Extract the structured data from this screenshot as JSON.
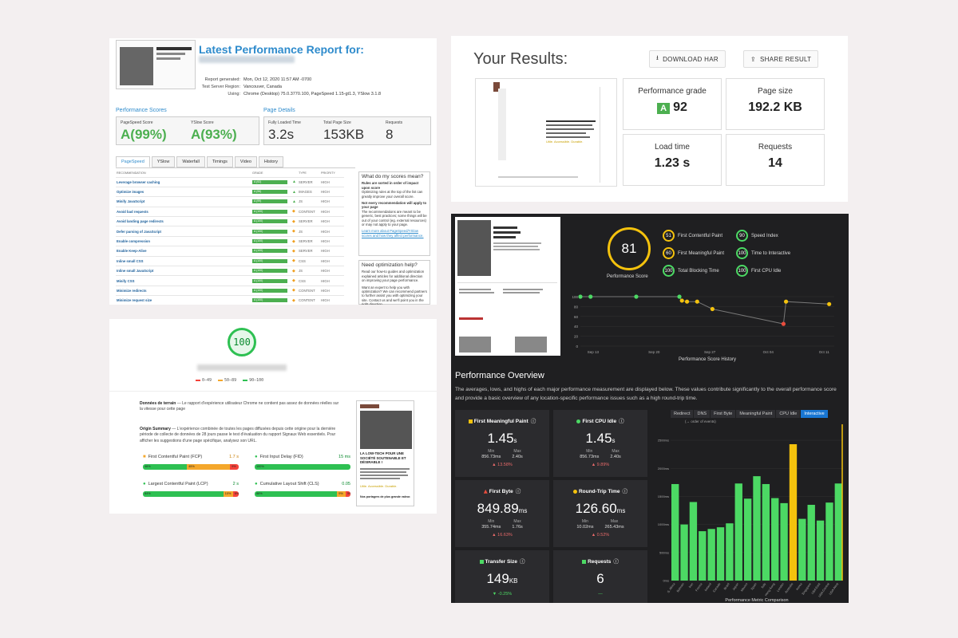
{
  "gtmetrix_report": {
    "title": "Latest Performance Report for:",
    "meta": [
      {
        "k": "Report generated:",
        "v": "Mon, Oct 12, 2020 11:57 AM -0700"
      },
      {
        "k": "Test Server Region:",
        "v": "Vancouver, Canada"
      },
      {
        "k": "Using:",
        "v": "Chrome (Desktop) 75.0.3770.100, PageSpeed 1.15-gt1.3, YSlow 3.1.8"
      }
    ],
    "scores_heading": "Performance Scores",
    "details_heading": "Page Details",
    "pagespeed": {
      "label": "PageSpeed Score",
      "grade": "A",
      "value": "(99%)"
    },
    "yslow": {
      "label": "YSlow Score",
      "grade": "A",
      "value": "(93%)"
    },
    "loaded": {
      "label": "Fully Loaded Time",
      "value": "3.2s"
    },
    "size": {
      "label": "Total Page Size",
      "value": "153KB"
    },
    "requests": {
      "label": "Requests",
      "value": "8"
    },
    "tabs": [
      "PageSpeed",
      "YSlow",
      "Waterfall",
      "Timings",
      "Video",
      "History"
    ],
    "columns": [
      "RECOMMENDATION",
      "GRADE",
      "TYPE",
      "PRIORITY"
    ],
    "rows": [
      {
        "name": "Leverage browser caching",
        "grade": "A (92)",
        "type": "SERVER",
        "priority": "HIGH"
      },
      {
        "name": "Optimize images",
        "grade": "A (96)",
        "type": "IMAGES",
        "priority": "HIGH"
      },
      {
        "name": "Minify JavaScript",
        "grade": "A (99)",
        "type": "JS",
        "priority": "HIGH"
      },
      {
        "name": "Avoid bad requests",
        "grade": "A (100)",
        "type": "CONTENT",
        "priority": "HIGH"
      },
      {
        "name": "Avoid landing page redirects",
        "grade": "A (100)",
        "type": "SERVER",
        "priority": "HIGH"
      },
      {
        "name": "Defer parsing of JavaScript",
        "grade": "A (100)",
        "type": "JS",
        "priority": "HIGH"
      },
      {
        "name": "Enable compression",
        "grade": "A (100)",
        "type": "SERVER",
        "priority": "HIGH"
      },
      {
        "name": "Enable Keep-Alive",
        "grade": "A (100)",
        "type": "SERVER",
        "priority": "HIGH"
      },
      {
        "name": "Inline small CSS",
        "grade": "A (100)",
        "type": "CSS",
        "priority": "HIGH"
      },
      {
        "name": "Inline small JavaScript",
        "grade": "A (100)",
        "type": "JS",
        "priority": "HIGH"
      },
      {
        "name": "Minify CSS",
        "grade": "A (100)",
        "type": "CSS",
        "priority": "HIGH"
      },
      {
        "name": "Minimize redirects",
        "grade": "A (100)",
        "type": "CONTENT",
        "priority": "HIGH"
      },
      {
        "name": "Minimize request size",
        "grade": "A (100)",
        "type": "CONTENT",
        "priority": "HIGH"
      }
    ],
    "side1": {
      "title": "What do my scores mean?",
      "b1": "Rules are sorted in order of impact upon score",
      "t1": "Optimizing rules at the top of the list can greatly improve your overall score.",
      "b2": "Not every recommendation will apply to your page",
      "t2": "The recommendations are meant to be generic, best practices; some things will be out of your control (eg. external resources) or may not apply to your page.",
      "link": "Learn more about PageSpeed/YSlow scores and how they affect performance."
    },
    "side2": {
      "title": "Need optimization help?",
      "t1": "Read our how-to guides and optimization explained articles for additional direction on improving your page performance.",
      "t2": "Want an expert to help you with optimization? We can recommend partners to further assist you with optimizing your site. Contact us and we'll point you in the right direction."
    }
  },
  "results": {
    "title": "Your Results:",
    "download": "DOWNLOAD HAR",
    "share": "SHARE RESULT",
    "cards": [
      {
        "label": "Performance grade",
        "grade": "A",
        "value": "92"
      },
      {
        "label": "Page size",
        "value": "192.2 KB"
      },
      {
        "label": "Load time",
        "value": "1.23 s"
      },
      {
        "label": "Requests",
        "value": "14"
      }
    ],
    "shot_tagline": "Utile. Accessible. Durable."
  },
  "lighthouse": {
    "score": "100",
    "legend": [
      "0–49",
      "50–89",
      "90–100"
    ],
    "field_title": "Données de terrain",
    "field_text": "— Le rapport d'expérience utilisateur Chrome ne contient pas assez de données réelles sur la vitesse pour cette page",
    "origin_title": "Origin Summary",
    "origin_text": "— L'expérience combinée de toutes les pages diffusées depuis cette origine pour la dernière période de collecte de données de 28 jours passe le test d'évaluation du rapport Signaux Web essentiels. Pour afficher les suggestions d'une page spécifique, analysez son URL.",
    "metrics": [
      {
        "name": "First Contentful Paint (FCP)",
        "value": "1.7 s",
        "segs": [
          {
            "pct": "46%",
            "w": 46,
            "c": "#2ec052"
          },
          {
            "pct": "45%",
            "w": 45,
            "c": "#f4a72b"
          },
          {
            "pct": "9%",
            "w": 9,
            "c": "#f4433a"
          }
        ]
      },
      {
        "name": "First Input Delay (FID)",
        "value": "15 ms",
        "segs": [
          {
            "pct": "100%",
            "w": 100,
            "c": "#2ec052"
          }
        ]
      },
      {
        "name": "Largest Contentful Paint (LCP)",
        "value": "2 s",
        "segs": [
          {
            "pct": "84%",
            "w": 84,
            "c": "#2ec052"
          },
          {
            "pct": "10%",
            "w": 10,
            "c": "#f4a72b"
          },
          {
            "pct": "6%",
            "w": 6,
            "c": "#f4433a"
          }
        ]
      },
      {
        "name": "Cumulative Layout Shift (CLS)",
        "value": "0.05",
        "segs": [
          {
            "pct": "86%",
            "w": 86,
            "c": "#2ec052"
          },
          {
            "pct": "9%",
            "w": 9,
            "c": "#f4a72b"
          },
          {
            "pct": "5%",
            "w": 5,
            "c": "#f4433a"
          }
        ]
      }
    ],
    "phone_head": "LA LOW-TECH POUR UNE SOCIÉTÉ SOUTENABLE ET DÉSIRABLE !",
    "phone_tag": "Utile. Accessible. Durable.",
    "phone_foot": "Nos portagers de plus grande valeur."
  },
  "speedcurve": {
    "score": "81",
    "score_label": "Performance Score",
    "small": [
      {
        "v": "51",
        "l": "First Contentful Paint",
        "c": "#f4c20d"
      },
      {
        "v": "90",
        "l": "Speed Index",
        "c": "#4cd964"
      },
      {
        "v": "60",
        "l": "First Meaningful Paint",
        "c": "#f4c20d"
      },
      {
        "v": "100",
        "l": "Time to Interactive",
        "c": "#4cd964"
      },
      {
        "v": "100",
        "l": "Total Blocking Time",
        "c": "#4cd964"
      },
      {
        "v": "100",
        "l": "First CPU Idle",
        "c": "#4cd964"
      }
    ],
    "history_title": "Performance Score History",
    "history_x": [
      "Sep 13",
      "Sep 20",
      "Sep 27",
      "Oct 04",
      "Oct 11"
    ],
    "history_y": [
      "100",
      "80",
      "60",
      "40",
      "20",
      "0"
    ],
    "overview_title": "Performance Overview",
    "overview_desc": "The averages, lows, and highs of each major performance measurement are displayed below. These values contribute significantly to the overall performance score and provide a basic overview of any location-specific performance issues such as a high round-trip time.",
    "cards": [
      {
        "title": "First Meaningful Paint",
        "dot": "#f4c20d",
        "val": "1.45",
        "unit": "s",
        "min": "856.73ms",
        "max": "2.40s",
        "chg": "▲ 13.58%",
        "good": false
      },
      {
        "title": "First CPU Idle",
        "dot": "#4cd964",
        "val": "1.45",
        "unit": "s",
        "min": "856.73ms",
        "max": "2.40s",
        "chg": "▲ 9.89%",
        "good": false
      },
      {
        "title": "First Byte",
        "dot": "#e84c3d",
        "val": "849.89",
        "unit": "ms",
        "min": "355.74ms",
        "max": "1.76s",
        "chg": "▲ 16.63%",
        "good": false
      },
      {
        "title": "Round-Trip Time",
        "dot": "#f4c20d",
        "val": "126.60",
        "unit": "ms",
        "min": "10.02ms",
        "max": "265.43ms",
        "chg": "▲ 0.52%",
        "good": false
      },
      {
        "title": "Transfer Size",
        "dot": "#4cd964",
        "val": "149",
        "unit": "KB",
        "min": "",
        "max": "",
        "chg": "▼ -0.25%",
        "good": true
      },
      {
        "title": "Requests",
        "dot": "#4cd964",
        "val": "6",
        "unit": "",
        "min": "",
        "max": "",
        "chg": "—",
        "good": true
      }
    ],
    "min_label": "Min",
    "max_label": "Max",
    "tabs": [
      "Redirect",
      "DNS",
      "First Byte",
      "Meaningful Paint",
      "CPU Idle",
      "Interactive"
    ],
    "tabs_note": "(→ order of events)",
    "bar_title": "Performance Metric Comparison",
    "bar_yticks": [
      "2500ms",
      "2000ms",
      "1500ms",
      "1000ms",
      "500ms",
      "0ms"
    ],
    "bar_x": [
      "S. Africa",
      "Bahrain",
      "Iran",
      "France",
      "Ireland",
      "Canada",
      "Brazil",
      "Japan",
      "Mexico",
      "Spain",
      "Italy",
      "Hong Kong",
      "London",
      "Australia",
      "Korea",
      "Singapore",
      "USA East",
      "USA Central",
      "USA West"
    ]
  },
  "chart_data": [
    {
      "type": "line",
      "title": "Performance Score History",
      "x": [
        "Sep 13",
        "Sep 14",
        "Sep 20",
        "Sep 24",
        "Sep 24",
        "Sep 25",
        "Sep 26",
        "Sep 28",
        "Oct 04",
        "Oct 04",
        "Oct 11"
      ],
      "values": [
        100,
        100,
        100,
        100,
        92,
        90,
        90,
        75,
        45,
        90,
        85
      ],
      "ylim": [
        0,
        100
      ],
      "xlabel": "",
      "ylabel": ""
    },
    {
      "type": "bar",
      "title": "Performance Metric Comparison",
      "categories": [
        "S. Africa",
        "Bahrain",
        "Iran",
        "France",
        "Ireland",
        "Canada",
        "Brazil",
        "Japan",
        "Mexico",
        "Spain",
        "Italy",
        "Hong Kong",
        "London",
        "Australia",
        "Korea",
        "Singapore",
        "USA East",
        "USA Central",
        "USA West"
      ],
      "values": [
        1720,
        1000,
        1400,
        880,
        920,
        950,
        1020,
        1730,
        1460,
        1860,
        1720,
        1470,
        1380,
        2430,
        1100,
        1350,
        1070,
        1390,
        1730
      ],
      "highlight": "Australia",
      "ylim": [
        0,
        2700
      ],
      "ylabel": "ms"
    }
  ]
}
